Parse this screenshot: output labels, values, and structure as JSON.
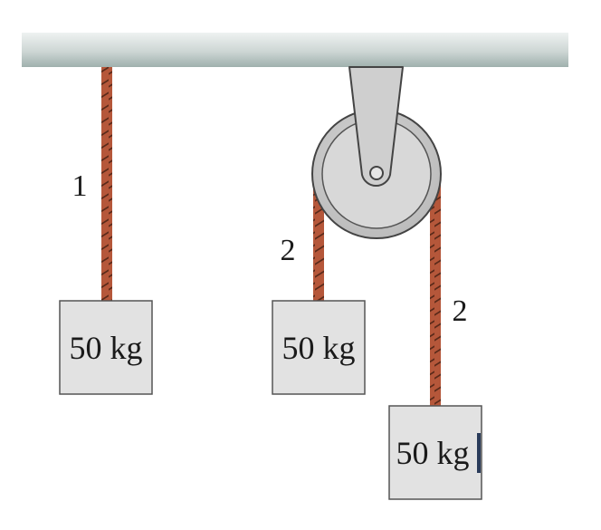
{
  "ceiling": {
    "color": "#c9d3d1"
  },
  "rope_labels": [
    "1",
    "2",
    "2"
  ],
  "masses": [
    {
      "label": "50 kg"
    },
    {
      "label": "50 kg"
    },
    {
      "label": "50 kg"
    }
  ],
  "colors": {
    "rope": "#b5573a",
    "rope_stripe": "#5a2a1a",
    "block_fill": "#e2e2e2",
    "block_stroke": "#555555",
    "pulley_fill": "#c8c8c8",
    "pulley_inner": "#dcdcdc",
    "bracket_fill": "#cfcfcf",
    "cursor": "#2a3b5a"
  }
}
